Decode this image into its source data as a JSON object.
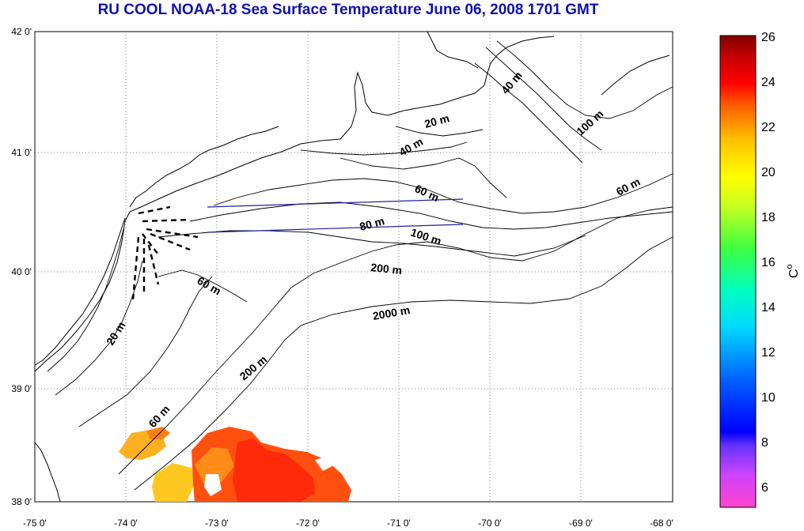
{
  "title": "RU COOL  NOAA-18 Sea Surface Temperature June 06, 2008 1701 GMT",
  "x_ticks": [
    "-75 0'",
    "-74 0'",
    "-73 0'",
    "-72 0'",
    "-71 0'",
    "-70 0'",
    "-69 0'",
    "-68 0'"
  ],
  "y_ticks": [
    "42 0'",
    "41 0'",
    "40 0'",
    "39 0'",
    "38 0'"
  ],
  "contour_labels": [
    "20 m",
    "40 m",
    "40 m",
    "60 m",
    "60 m",
    "60 m",
    "60 m",
    "80 m",
    "100 m",
    "100 m",
    "200 m",
    "200 m",
    "2000 m",
    "20 m"
  ],
  "colorbar": {
    "ticks": [
      "26",
      "24",
      "22",
      "20",
      "18",
      "16",
      "14",
      "12",
      "10",
      "8",
      "6"
    ],
    "unit": "C",
    "unit_sup": "o",
    "min": 5,
    "max": 26
  },
  "colors": {
    "title": "#1010b0",
    "transect": "#2020a0"
  }
}
